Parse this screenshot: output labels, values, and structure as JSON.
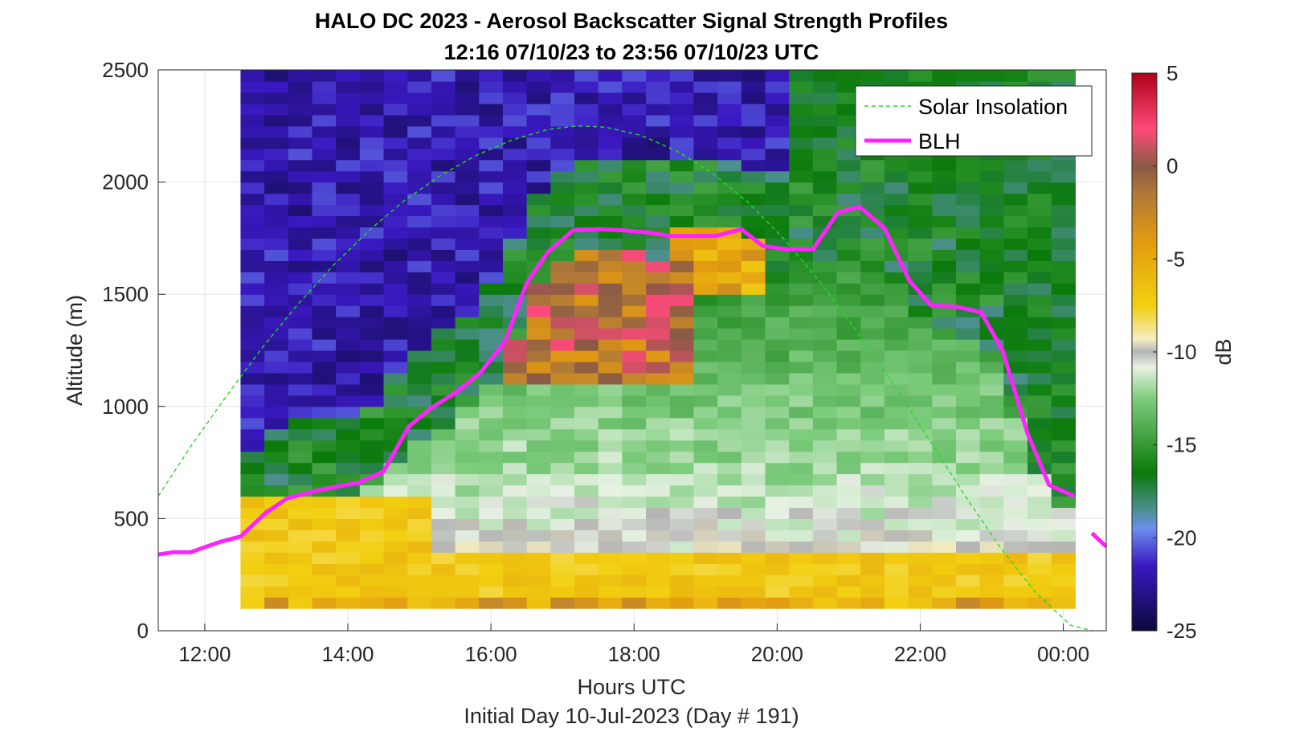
{
  "chart_data": {
    "type": "heatmap",
    "title": "HALO DC 2023 - Aerosol Backscatter Signal Strength Profiles",
    "subtitle": "12:16 07/10/23 to 23:56 07/10/23  UTC",
    "xlabel": "Hours UTC",
    "xlabel2": "Initial Day 10-Jul-2023 (Day # 191)",
    "ylabel": "Altitude (m)",
    "colorbar_label": "dB",
    "xlim": [
      11.35,
      24.6
    ],
    "ylim": [
      0,
      2500
    ],
    "clim": [
      -25,
      5
    ],
    "grid": true,
    "legend_position": "top-right",
    "x_ticks": [
      12,
      14,
      16,
      18,
      20,
      22,
      24
    ],
    "x_tick_labels": [
      "12:00",
      "14:00",
      "16:00",
      "18:00",
      "20:00",
      "22:00",
      "00:00"
    ],
    "y_ticks": [
      0,
      500,
      1000,
      1500,
      2000,
      2500
    ],
    "y_tick_labels": [
      "0",
      "500",
      "1000",
      "1500",
      "2000",
      "2500"
    ],
    "colorbar_ticks": [
      5,
      0,
      -5,
      -10,
      -15,
      -20,
      -25
    ],
    "colorbar_tick_labels": [
      "5",
      "0",
      "-5",
      "-10",
      "-15",
      "-20",
      "-25"
    ],
    "colormap": [
      {
        "db": -25,
        "color": "#0a0a3a"
      },
      {
        "db": -21.5,
        "color": "#3a18c0"
      },
      {
        "db": -19.5,
        "color": "#6a8ef0"
      },
      {
        "db": -18.5,
        "color": "#4d8f8f"
      },
      {
        "db": -16.5,
        "color": "#0a7a0a"
      },
      {
        "db": -12.5,
        "color": "#7ecc7e"
      },
      {
        "db": -10.8,
        "color": "#e8f2e4"
      },
      {
        "db": -10,
        "color": "#b4b4b4"
      },
      {
        "db": -9.3,
        "color": "#f5edc0"
      },
      {
        "db": -7.5,
        "color": "#f2cf10"
      },
      {
        "db": -4,
        "color": "#e29a10"
      },
      {
        "db": -1.5,
        "color": "#b07838"
      },
      {
        "db": 0,
        "color": "#8a5a45"
      },
      {
        "db": 2,
        "color": "#ff4a7a"
      },
      {
        "db": 5,
        "color": "#b00018"
      }
    ],
    "series": [
      {
        "name": "Solar Insolation",
        "color": "#22dd22",
        "style": "dashed",
        "x": [
          11.35,
          11.8,
          12.3,
          12.8,
          13.3,
          13.8,
          14.3,
          14.8,
          15.3,
          15.8,
          16.3,
          16.8,
          17.2,
          17.6,
          18.1,
          18.6,
          19.1,
          19.6,
          20.1,
          20.6,
          21.1,
          21.6,
          22.1,
          22.6,
          23.1,
          23.6,
          24.1,
          24.4
        ],
        "y": [
          600,
          820,
          1045,
          1260,
          1455,
          1630,
          1785,
          1920,
          2030,
          2120,
          2188,
          2235,
          2250,
          2245,
          2208,
          2138,
          2038,
          1908,
          1745,
          1555,
          1340,
          1110,
          865,
          615,
          380,
          175,
          25,
          0
        ]
      },
      {
        "name": "BLH",
        "color": "#ff22ff",
        "style": "solid",
        "segments": [
          {
            "x": [
              11.35,
              11.55,
              11.8,
              12.2,
              12.5,
              12.85,
              13.15,
              13.5,
              13.8,
              14.15,
              14.5,
              14.85,
              15.15,
              15.5,
              15.85,
              16.2,
              16.5,
              16.8,
              17.15,
              17.5,
              17.85,
              18.2,
              18.5,
              18.85,
              19.15,
              19.5,
              19.8,
              20.15,
              20.5,
              20.85,
              21.15,
              21.5,
              21.85,
              22.15,
              22.5,
              22.85,
              23.15,
              23.5,
              23.8,
              24.15
            ],
            "y": [
              340,
              350,
              350,
              395,
              420,
              525,
              590,
              620,
              640,
              660,
              710,
              910,
              990,
              1060,
              1150,
              1290,
              1550,
              1690,
              1785,
              1790,
              1785,
              1775,
              1760,
              1760,
              1760,
              1790,
              1715,
              1700,
              1700,
              1865,
              1890,
              1795,
              1560,
              1450,
              1445,
              1420,
              1250,
              880,
              650,
              600
            ]
          },
          {
            "x": [
              24.4,
              24.6
            ],
            "y": [
              435,
              375
            ]
          }
        ]
      }
    ]
  }
}
